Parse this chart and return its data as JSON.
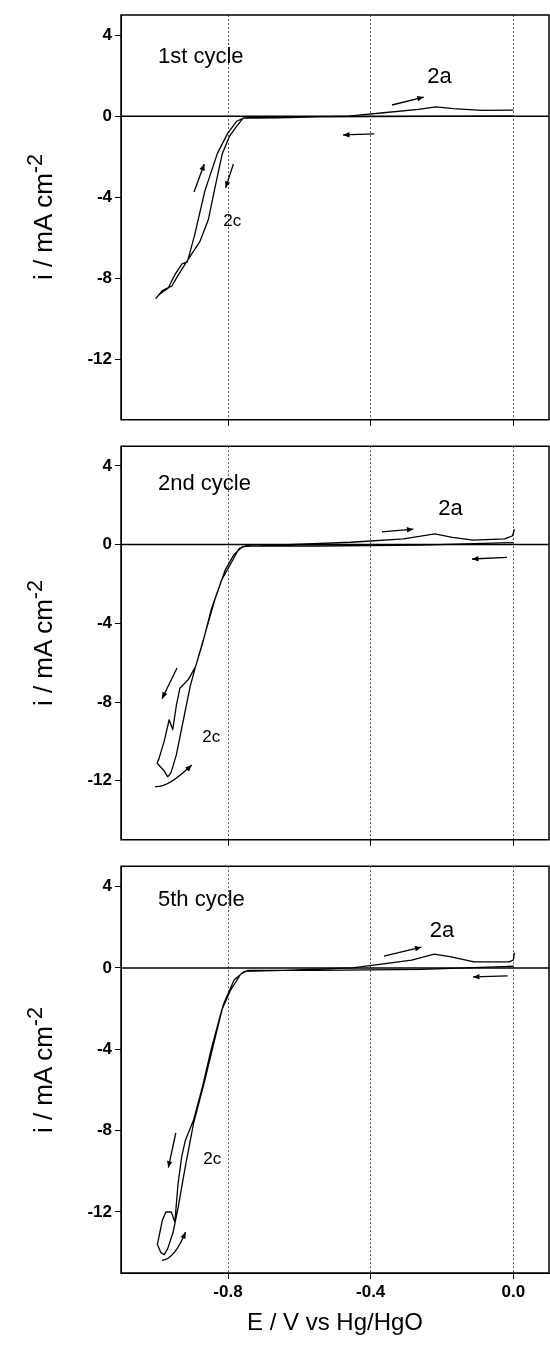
{
  "chart_data": [
    {
      "type": "line",
      "title": "1st cycle",
      "ylabel": "i / mA cm$^{-2}$",
      "xlim": [
        -1.1,
        0.1
      ],
      "ylim": [
        -15,
        5
      ],
      "xticks": [
        -0.8,
        -0.4,
        0
      ],
      "yticks": [
        4,
        0,
        -4,
        -8,
        -12
      ],
      "grid": "x",
      "tick_labels": "y",
      "ref_lines": [
        {
          "axis": "y",
          "value": 0,
          "color": "#000000"
        }
      ],
      "annotations": [
        "2a",
        "2c"
      ],
      "series": [
        {
          "color": "#000000",
          "x": [
            0.0,
            -0.4,
            -0.7,
            -0.757,
            -0.776,
            -0.796,
            -0.816,
            -0.835,
            -0.855,
            -0.879,
            -0.909,
            -0.938,
            -0.958,
            -0.983,
            -1.002,
            -0.992,
            -0.968,
            -0.948,
            -0.929,
            -0.914,
            -0.894,
            -0.865,
            -0.83,
            -0.801,
            -0.776,
            -0.757,
            -0.659,
            -0.462,
            -0.364,
            -0.266,
            -0.217,
            -0.168,
            -0.089,
            0.0
          ],
          "values": [
            0.0,
            -0.02,
            -0.05,
            -0.08,
            -0.5,
            -1.0,
            -1.85,
            -3.4,
            -5.1,
            -6.2,
            -7.0,
            -7.8,
            -8.4,
            -8.6,
            -9.0,
            -8.8,
            -8.5,
            -7.8,
            -7.3,
            -7.2,
            -5.9,
            -3.7,
            -1.85,
            -0.85,
            -0.25,
            -0.1,
            -0.08,
            0.0,
            0.17,
            0.34,
            0.46,
            0.37,
            0.29,
            0.3
          ]
        }
      ]
    },
    {
      "type": "line",
      "title": "2nd cycle",
      "ylabel": "i / mA cm$^{-2}$",
      "xlim": [
        -1.1,
        0.1
      ],
      "ylim": [
        -15,
        5
      ],
      "xticks": [
        -0.8,
        -0.4,
        0
      ],
      "yticks": [
        4,
        0,
        -4,
        -8,
        -12
      ],
      "grid": "x",
      "tick_labels": "y",
      "ref_lines": [
        {
          "axis": "y",
          "value": 0,
          "color": "#000000"
        }
      ],
      "annotations": [
        "2a",
        "2c"
      ],
      "series": [
        {
          "color": "#000000",
          "x": [
            0.0,
            -0.26,
            -0.55,
            -0.73,
            -0.749,
            -0.769,
            -0.793,
            -0.818,
            -0.847,
            -0.871,
            -0.891,
            -0.911,
            -0.935,
            -0.945,
            -0.955,
            -0.965,
            -0.979,
            -0.994,
            -0.999,
            -0.989,
            -0.979,
            -0.969,
            -0.96,
            -0.945,
            -0.925,
            -0.906,
            -0.891,
            -0.867,
            -0.837,
            -0.808,
            -0.783,
            -0.759,
            -0.7,
            -0.455,
            -0.308,
            -0.22,
            -0.171,
            -0.112,
            -0.024,
            -0.002,
            0.003
          ],
          "values": [
            0.1,
            -0.03,
            -0.07,
            -0.07,
            -0.05,
            -0.2,
            -1.0,
            -1.8,
            -3.3,
            -5.0,
            -6.2,
            -6.85,
            -7.3,
            -8.2,
            -9.4,
            -8.9,
            -10.0,
            -10.9,
            -11.1,
            -11.3,
            -11.5,
            -11.8,
            -11.6,
            -10.7,
            -8.9,
            -7.2,
            -6.2,
            -4.7,
            -2.8,
            -1.3,
            -0.5,
            -0.1,
            -0.05,
            0.12,
            0.29,
            0.54,
            0.37,
            0.23,
            0.29,
            0.45,
            0.79
          ]
        }
      ]
    },
    {
      "type": "line",
      "title": "5th cycle",
      "xlabel": "E / V vs Hg/HgO",
      "ylabel": "i / mA cm$^{-2}$",
      "xlim": [
        -1.1,
        0.1
      ],
      "ylim": [
        -15,
        5
      ],
      "xticks": [
        -0.8,
        -0.4,
        {
          "value": 0,
          "label": "0.0"
        }
      ],
      "yticks": [
        4,
        0,
        -4,
        -8,
        -12
      ],
      "grid": "x",
      "ref_lines": [
        {
          "axis": "y",
          "value": 0,
          "color": "#000000"
        }
      ],
      "annotations": [
        "2a",
        "2c"
      ],
      "series": [
        {
          "color": "#000000",
          "x": [
            0.0,
            -0.256,
            -0.55,
            -0.72,
            -0.744,
            -0.764,
            -0.793,
            -0.818,
            -0.847,
            -0.871,
            -0.896,
            -0.92,
            -0.93,
            -0.94,
            -0.949,
            -0.959,
            -0.974,
            -0.984,
            -0.998,
            -0.988,
            -0.979,
            -0.969,
            -0.954,
            -0.94,
            -0.92,
            -0.896,
            -0.866,
            -0.837,
            -0.813,
            -0.783,
            -0.754,
            -0.647,
            -0.451,
            -0.354,
            -0.285,
            -0.222,
            -0.178,
            -0.11,
            -0.012,
            0.0,
            0.003
          ],
          "values": [
            0.08,
            -0.07,
            -0.12,
            -0.12,
            -0.12,
            -0.3,
            -1.1,
            -2.1,
            -4.0,
            -5.8,
            -7.45,
            -8.5,
            -9.3,
            -10.6,
            -12.5,
            -12.0,
            -12.0,
            -12.4,
            -13.6,
            -14.0,
            -14.1,
            -13.8,
            -13.0,
            -11.8,
            -9.8,
            -7.6,
            -5.6,
            -3.5,
            -1.8,
            -0.6,
            -0.17,
            -0.12,
            0.0,
            0.22,
            0.38,
            0.68,
            0.55,
            0.3,
            0.3,
            0.38,
            0.75
          ]
        }
      ]
    }
  ]
}
